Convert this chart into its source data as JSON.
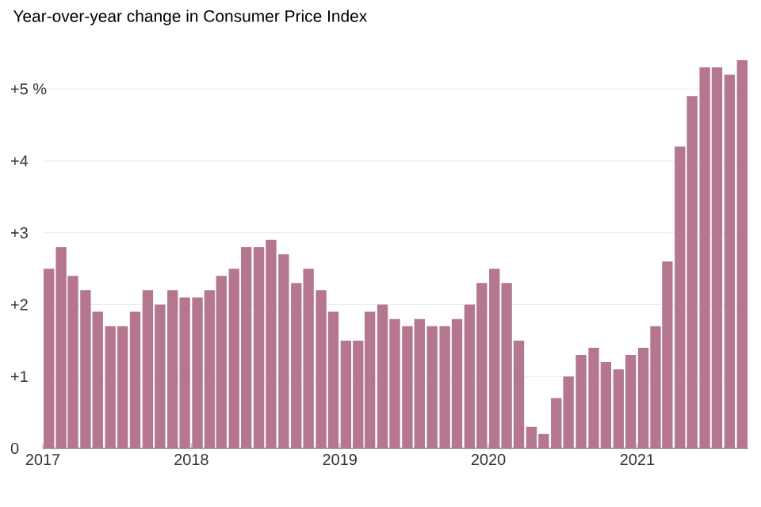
{
  "chart_data": {
    "type": "bar",
    "title": "Year-over-year change in Consumer Price Index",
    "x": [
      "2017-01-16",
      "2017-02-15",
      "2017-03-16",
      "2017-04-16",
      "2017-05-16",
      "2017-06-16",
      "2017-07-16",
      "2017-08-16",
      "2017-09-16",
      "2017-10-16",
      "2017-11-16",
      "2017-12-16",
      "2018-01-16",
      "2018-02-15",
      "2018-03-16",
      "2018-04-16",
      "2018-05-16",
      "2018-06-16",
      "2018-07-16",
      "2018-08-16",
      "2018-09-16",
      "2018-10-16",
      "2018-11-16",
      "2018-12-16",
      "2019-01-16",
      "2019-02-15",
      "2019-03-16",
      "2019-04-16",
      "2019-05-16",
      "2019-06-16",
      "2019-07-16",
      "2019-08-16",
      "2019-09-16",
      "2019-10-16",
      "2019-11-16",
      "2019-12-16",
      "2020-01-16",
      "2020-02-15",
      "2020-03-16",
      "2020-04-16",
      "2020-05-16",
      "2020-06-16",
      "2020-07-16",
      "2020-08-16",
      "2020-09-16",
      "2020-10-16",
      "2020-11-16",
      "2020-12-16",
      "2021-01-16",
      "2021-02-15",
      "2021-03-16",
      "2021-04-16",
      "2021-05-16",
      "2021-06-16",
      "2021-07-16",
      "2021-08-16",
      "2021-09-16"
    ],
    "values": [
      2.5,
      2.8,
      2.4,
      2.2,
      1.9,
      1.7,
      1.7,
      1.9,
      2.2,
      2.0,
      2.2,
      2.1,
      2.1,
      2.2,
      2.4,
      2.5,
      2.8,
      2.8,
      2.9,
      2.7,
      2.3,
      2.5,
      2.2,
      1.9,
      1.5,
      1.5,
      1.9,
      2.0,
      1.8,
      1.7,
      1.8,
      1.7,
      1.7,
      1.8,
      2.0,
      2.3,
      2.5,
      2.3,
      1.5,
      0.3,
      0.2,
      0.7,
      1.0,
      1.3,
      1.4,
      1.2,
      1.1,
      1.3,
      1.4,
      1.7,
      2.6,
      4.2,
      4.9,
      5.3,
      5.3,
      5.2,
      5.4
    ],
    "color": "#b5768f",
    "xlim": [
      "2017-01-01",
      "2021-10-01"
    ],
    "xticks": [
      {
        "value": "2017-01-01",
        "label": "2017"
      },
      {
        "value": "2018-01-01",
        "label": "2018"
      },
      {
        "value": "2019-01-01",
        "label": "2019"
      },
      {
        "value": "2020-01-01",
        "label": "2020"
      },
      {
        "value": "2021-01-01",
        "label": "2021"
      }
    ],
    "ylim": [
      0,
      5.4
    ],
    "yticks": [
      0,
      {
        "value": 1,
        "label": "+1"
      },
      {
        "value": 2,
        "label": "+2"
      },
      {
        "value": 3,
        "label": "+3"
      },
      {
        "value": 4,
        "label": "+4"
      },
      {
        "value": 5,
        "label": "+5 %"
      }
    ],
    "grid": "y"
  }
}
